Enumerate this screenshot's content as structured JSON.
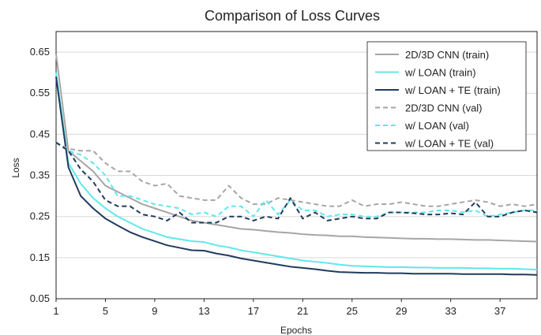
{
  "chart_data": {
    "type": "line",
    "title": "Comparison of Loss Curves",
    "xlabel": "Epochs",
    "ylabel": "Loss",
    "xlim": [
      1,
      40
    ],
    "ylim": [
      0.05,
      0.7
    ],
    "xticks": [
      1,
      5,
      9,
      13,
      17,
      21,
      25,
      29,
      33,
      37
    ],
    "yticks": [
      0.05,
      0.15,
      0.25,
      0.35,
      0.45,
      0.55,
      0.65
    ],
    "ytick_labels": [
      "0.05",
      "0.15",
      "0.25",
      "0.35",
      "0.45",
      "0.55",
      "0.65"
    ],
    "grid": "horizontal",
    "legend_position": "top-right",
    "x": [
      1,
      2,
      3,
      4,
      5,
      6,
      7,
      8,
      9,
      10,
      11,
      12,
      13,
      14,
      15,
      16,
      17,
      18,
      19,
      20,
      21,
      22,
      23,
      24,
      25,
      26,
      27,
      28,
      29,
      30,
      31,
      32,
      33,
      34,
      35,
      36,
      37,
      38,
      39,
      40
    ],
    "series": [
      {
        "name": "2D/3D CNN (train)",
        "color": "#a6a6a6",
        "dash": "solid",
        "values": [
          0.645,
          0.41,
          0.385,
          0.36,
          0.325,
          0.31,
          0.295,
          0.28,
          0.27,
          0.26,
          0.25,
          0.24,
          0.235,
          0.23,
          0.225,
          0.22,
          0.218,
          0.215,
          0.212,
          0.21,
          0.207,
          0.205,
          0.204,
          0.202,
          0.202,
          0.2,
          0.199,
          0.198,
          0.197,
          0.196,
          0.196,
          0.195,
          0.195,
          0.194,
          0.193,
          0.193,
          0.192,
          0.191,
          0.19,
          0.189
        ]
      },
      {
        "name": "w/ LOAN (train)",
        "color": "#5ee8ec",
        "dash": "solid",
        "values": [
          0.6,
          0.38,
          0.33,
          0.295,
          0.27,
          0.25,
          0.235,
          0.22,
          0.21,
          0.2,
          0.195,
          0.19,
          0.188,
          0.18,
          0.175,
          0.168,
          0.163,
          0.158,
          0.153,
          0.148,
          0.143,
          0.14,
          0.137,
          0.133,
          0.13,
          0.129,
          0.128,
          0.127,
          0.127,
          0.126,
          0.126,
          0.125,
          0.125,
          0.125,
          0.124,
          0.124,
          0.123,
          0.123,
          0.122,
          0.121
        ]
      },
      {
        "name": "w/ LOAN + TE (train)",
        "color": "#1f3b5e",
        "dash": "solid",
        "values": [
          0.59,
          0.37,
          0.3,
          0.27,
          0.245,
          0.228,
          0.212,
          0.2,
          0.19,
          0.18,
          0.174,
          0.168,
          0.167,
          0.16,
          0.155,
          0.148,
          0.143,
          0.138,
          0.133,
          0.128,
          0.125,
          0.122,
          0.118,
          0.115,
          0.114,
          0.113,
          0.113,
          0.112,
          0.112,
          0.111,
          0.111,
          0.111,
          0.111,
          0.11,
          0.11,
          0.11,
          0.11,
          0.109,
          0.109,
          0.108
        ]
      },
      {
        "name": "2D/3D CNN (val)",
        "color": "#a6a6a6",
        "dash": "dashed",
        "values": [
          0.43,
          0.415,
          0.41,
          0.41,
          0.38,
          0.36,
          0.36,
          0.335,
          0.325,
          0.33,
          0.3,
          0.295,
          0.29,
          0.29,
          0.325,
          0.295,
          0.28,
          0.28,
          0.295,
          0.29,
          0.285,
          0.28,
          0.275,
          0.275,
          0.29,
          0.275,
          0.28,
          0.28,
          0.285,
          0.28,
          0.275,
          0.275,
          0.28,
          0.285,
          0.29,
          0.285,
          0.275,
          0.28,
          0.275,
          0.28
        ]
      },
      {
        "name": "w/ LOAN (val)",
        "color": "#5ee8ec",
        "dash": "dashed",
        "values": [
          0.43,
          0.41,
          0.4,
          0.38,
          0.35,
          0.3,
          0.3,
          0.29,
          0.28,
          0.275,
          0.27,
          0.255,
          0.26,
          0.25,
          0.275,
          0.275,
          0.25,
          0.29,
          0.255,
          0.29,
          0.265,
          0.265,
          0.25,
          0.255,
          0.255,
          0.25,
          0.25,
          0.26,
          0.26,
          0.26,
          0.26,
          0.265,
          0.265,
          0.26,
          0.265,
          0.25,
          0.255,
          0.26,
          0.265,
          0.265
        ]
      },
      {
        "name": "w/ LOAN + TE (val)",
        "color": "#1f3b5e",
        "dash": "dashed",
        "values": [
          0.43,
          0.41,
          0.365,
          0.335,
          0.29,
          0.275,
          0.275,
          0.255,
          0.25,
          0.24,
          0.26,
          0.235,
          0.235,
          0.235,
          0.25,
          0.25,
          0.24,
          0.25,
          0.245,
          0.295,
          0.245,
          0.26,
          0.24,
          0.245,
          0.25,
          0.245,
          0.245,
          0.26,
          0.26,
          0.258,
          0.255,
          0.255,
          0.258,
          0.255,
          0.285,
          0.25,
          0.25,
          0.26,
          0.265,
          0.26
        ]
      }
    ]
  }
}
